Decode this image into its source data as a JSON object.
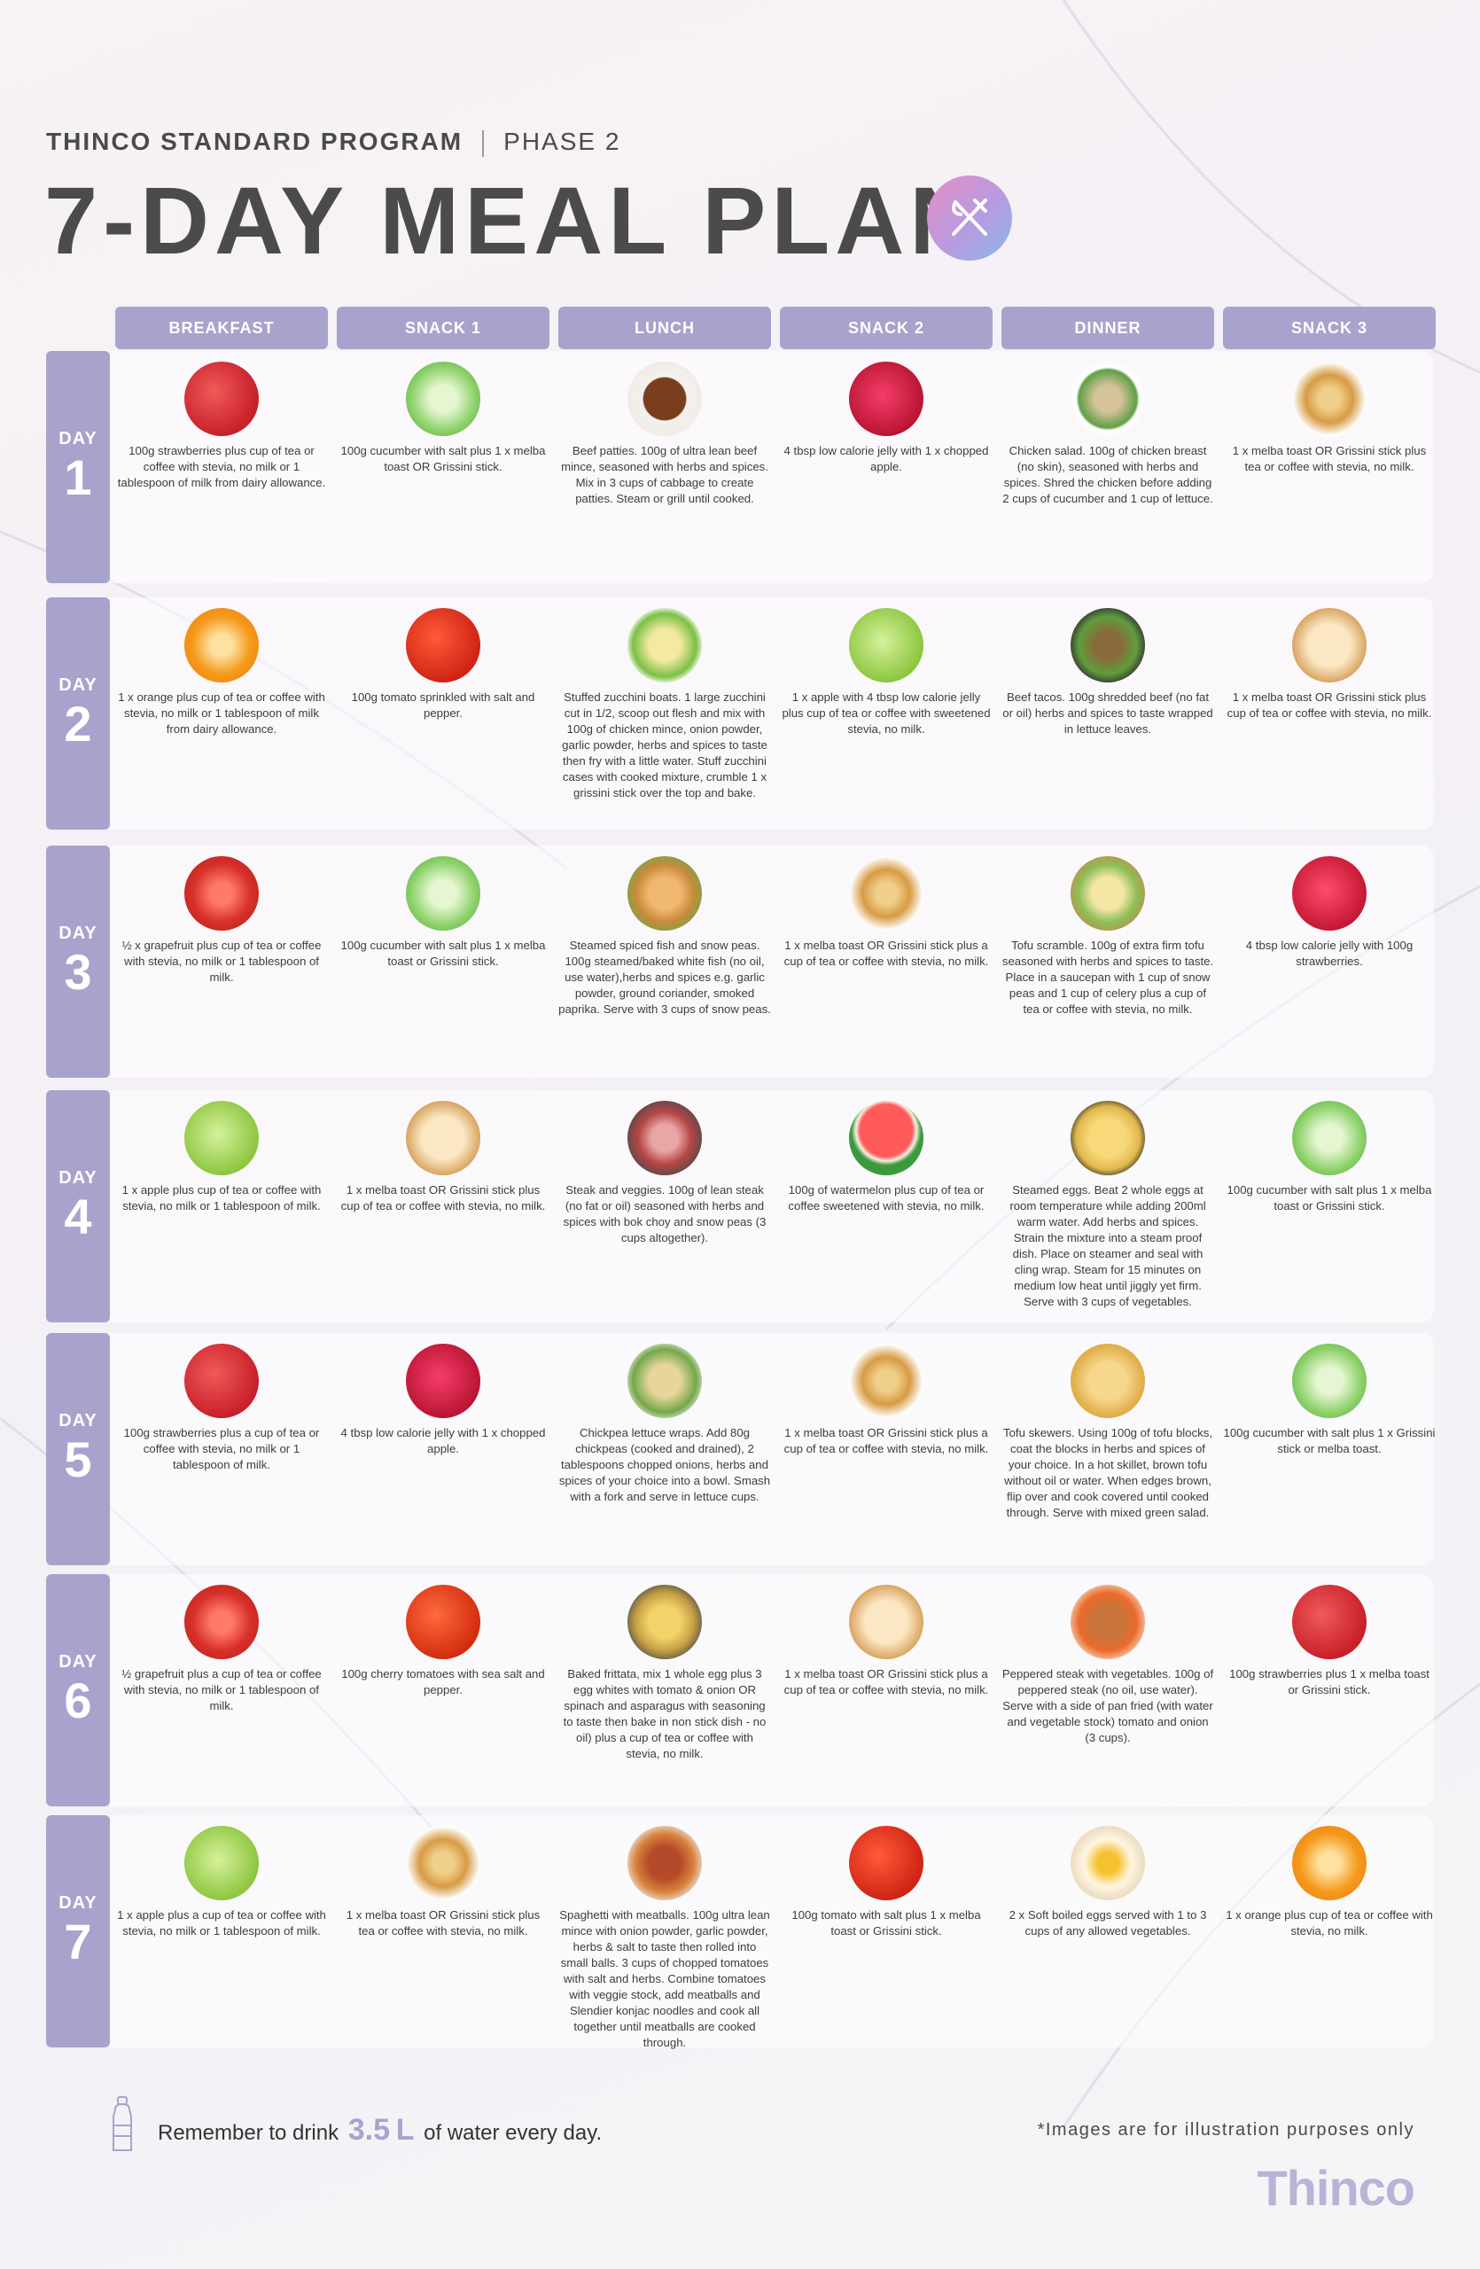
{
  "header": {
    "program": "THINCO STANDARD PROGRAM",
    "phase": "PHASE 2",
    "title": "7-DAY MEAL PLAN",
    "icon": "fork-knife-icon"
  },
  "columns": [
    "BREAKFAST",
    "SNACK 1",
    "LUNCH",
    "SNACK 2",
    "DINNER",
    "SNACK 3"
  ],
  "day_label": "DAY",
  "colors": {
    "accent": "#a7a3cd",
    "text": "#3d3d3d"
  },
  "days": [
    {
      "number": "1",
      "meals": [
        {
          "icon": "strawberries",
          "text": "100g strawberries plus cup of tea or coffee with stevia, no milk or 1 tablespoon of milk from dairy allowance."
        },
        {
          "icon": "cucumber",
          "text": "100g cucumber with salt plus 1 x melba toast OR Grissini stick."
        },
        {
          "icon": "beef-patties",
          "text": "Beef patties. 100g of ultra lean beef mince, seasoned with herbs and spices. Mix in 3 cups of cabbage to create patties. Steam or grill until cooked."
        },
        {
          "icon": "jelly-apple",
          "text": "4 tbsp low calorie jelly with 1 x chopped apple."
        },
        {
          "icon": "chicken-salad",
          "text": "Chicken salad. 100g of chicken breast (no skin), seasoned with herbs and spices. Shred the chicken before adding 2 cups of cucumber and 1 cup of lettuce."
        },
        {
          "icon": "grissini",
          "text": "1 x melba toast OR Grissini stick plus tea or coffee with stevia, no milk."
        }
      ]
    },
    {
      "number": "2",
      "meals": [
        {
          "icon": "orange",
          "text": "1 x orange plus cup of tea or coffee with stevia, no milk or 1 tablespoon of milk from dairy allowance."
        },
        {
          "icon": "tomato",
          "text": "100g tomato sprinkled with salt and pepper."
        },
        {
          "icon": "zucchini-boats",
          "text": "Stuffed zucchini boats. 1 large zucchini cut in 1/2, scoop out flesh and mix with 100g of chicken mince, onion powder, garlic powder, herbs and spices to taste then fry with a little water. Stuff zucchini cases with cooked mixture, crumble 1 x grissini stick over the top and bake."
        },
        {
          "icon": "apple",
          "text": "1 x apple with 4 tbsp low calorie jelly plus cup of tea or coffee with sweetened stevia, no milk."
        },
        {
          "icon": "beef-tacos",
          "text": "Beef tacos. 100g shredded beef (no fat or oil) herbs and spices to taste wrapped in lettuce leaves."
        },
        {
          "icon": "melba-toast",
          "text": "1 x melba toast OR Grissini stick plus cup of tea or coffee with stevia, no milk."
        }
      ]
    },
    {
      "number": "3",
      "meals": [
        {
          "icon": "grapefruit",
          "text": "½ x grapefruit plus cup of tea or coffee with stevia, no milk or 1 tablespoon of milk."
        },
        {
          "icon": "cucumber",
          "text": "100g cucumber with salt plus 1 x melba toast or Grissini stick."
        },
        {
          "icon": "fish",
          "text": "Steamed spiced fish and snow peas. 100g steamed/baked white fish (no oil, use water),herbs and spices e.g. garlic powder, ground coriander, smoked paprika. Serve with 3 cups of snow peas."
        },
        {
          "icon": "grissini",
          "text": "1 x melba toast OR Grissini stick plus a cup of tea or coffee with stevia, no milk."
        },
        {
          "icon": "tofu-scramble",
          "text": "Tofu scramble. 100g of extra firm tofu seasoned with herbs and spices to taste. Place in a saucepan with 1 cup of snow peas and 1 cup of celery plus a cup of tea or coffee with stevia, no milk."
        },
        {
          "icon": "jelly-strawberries",
          "text": "4 tbsp low calorie jelly with 100g strawberries."
        }
      ]
    },
    {
      "number": "4",
      "meals": [
        {
          "icon": "apple",
          "text": "1 x apple plus cup of tea or coffee with stevia, no milk or 1 tablespoon of milk."
        },
        {
          "icon": "melba-toast",
          "text": "1 x melba toast OR Grissini stick plus cup of tea or coffee with stevia, no milk."
        },
        {
          "icon": "steak-veggies",
          "text": "Steak and veggies. 100g of lean steak (no fat or oil) seasoned with herbs and spices with bok choy and snow peas (3 cups altogether)."
        },
        {
          "icon": "watermelon",
          "text": "100g of watermelon plus cup of tea or coffee sweetened with stevia, no milk."
        },
        {
          "icon": "steamed-eggs",
          "text": "Steamed eggs. Beat 2 whole eggs at room temperature while adding 200ml warm water. Add herbs and spices. Strain the mixture into a steam proof dish. Place on steamer and seal with cling wrap. Steam for 15 minutes on medium low heat until jiggly yet firm. Serve with 3 cups of vegetables."
        },
        {
          "icon": "cucumber",
          "text": "100g cucumber with salt plus 1 x melba toast or Grissini stick."
        }
      ]
    },
    {
      "number": "5",
      "meals": [
        {
          "icon": "strawberries",
          "text": "100g strawberries plus a cup of tea or coffee with stevia, no milk or 1 tablespoon of milk."
        },
        {
          "icon": "jelly-apple",
          "text": "4 tbsp low calorie jelly with 1 x chopped apple."
        },
        {
          "icon": "chickpea-wraps",
          "text": "Chickpea lettuce wraps. Add 80g chickpeas (cooked and drained), 2 tablespoons chopped onions, herbs and spices of your choice into a bowl. Smash with a fork and serve in lettuce cups."
        },
        {
          "icon": "grissini",
          "text": "1 x melba toast OR Grissini stick plus a cup of tea or coffee with stevia, no milk."
        },
        {
          "icon": "tofu-skewers",
          "text": "Tofu skewers. Using 100g of tofu blocks, coat the blocks in herbs and spices of your choice. In a hot skillet, brown tofu without oil or water. When edges brown, flip over and cook covered until cooked through. Serve with mixed green salad."
        },
        {
          "icon": "cucumber",
          "text": "100g cucumber with salt plus 1 x Grissini stick or melba toast."
        }
      ]
    },
    {
      "number": "6",
      "meals": [
        {
          "icon": "grapefruit",
          "text": "½ grapefruit plus a cup of tea or coffee with stevia, no milk or 1 tablespoon of milk."
        },
        {
          "icon": "cherry-tomatoes",
          "text": "100g cherry tomatoes with sea salt and pepper."
        },
        {
          "icon": "frittata",
          "text": "Baked frittata, mix 1 whole egg plus 3 egg whites with tomato & onion OR spinach and asparagus with seasoning to taste then bake in non stick dish - no oil) plus a cup of tea or coffee with stevia, no milk."
        },
        {
          "icon": "melba-toast",
          "text": "1 x melba toast OR Grissini stick plus a cup of tea or coffee with stevia, no milk."
        },
        {
          "icon": "peppered-steak",
          "text": "Peppered steak with vegetables. 100g of peppered steak (no oil, use water). Serve with a side of pan fried (with water and vegetable stock) tomato and onion (3 cups)."
        },
        {
          "icon": "strawberries",
          "text": "100g strawberries plus 1 x melba toast or Grissini stick."
        }
      ]
    },
    {
      "number": "7",
      "meals": [
        {
          "icon": "apple",
          "text": "1 x apple plus a cup of tea or coffee with stevia, no milk or 1 tablespoon of milk."
        },
        {
          "icon": "grissini",
          "text": "1 x melba toast OR Grissini stick plus tea or coffee with stevia, no milk."
        },
        {
          "icon": "meatballs",
          "text": "Spaghetti with meatballs. 100g ultra lean mince with onion powder, garlic powder, herbs & salt to taste then rolled into small balls. 3 cups of chopped tomatoes with salt and herbs. Combine tomatoes with veggie stock, add meatballs and Slendier konjac noodles and cook all together until meatballs are cooked through."
        },
        {
          "icon": "tomato",
          "text": "100g tomato with salt plus 1 x melba toast or Grissini stick."
        },
        {
          "icon": "boiled-eggs",
          "text": "2 x Soft boiled eggs served with 1 to 3 cups of any allowed vegetables."
        },
        {
          "icon": "orange",
          "text": "1 x orange plus cup of tea or coffee with stevia, no milk."
        }
      ]
    }
  ],
  "footer": {
    "water_prefix": "Remember to drink",
    "water_amount": "3.5",
    "water_unit": "L",
    "water_suffix": "of water every day.",
    "disclaimer": "*Images are for illustration purposes only",
    "brand": "Thinco"
  }
}
